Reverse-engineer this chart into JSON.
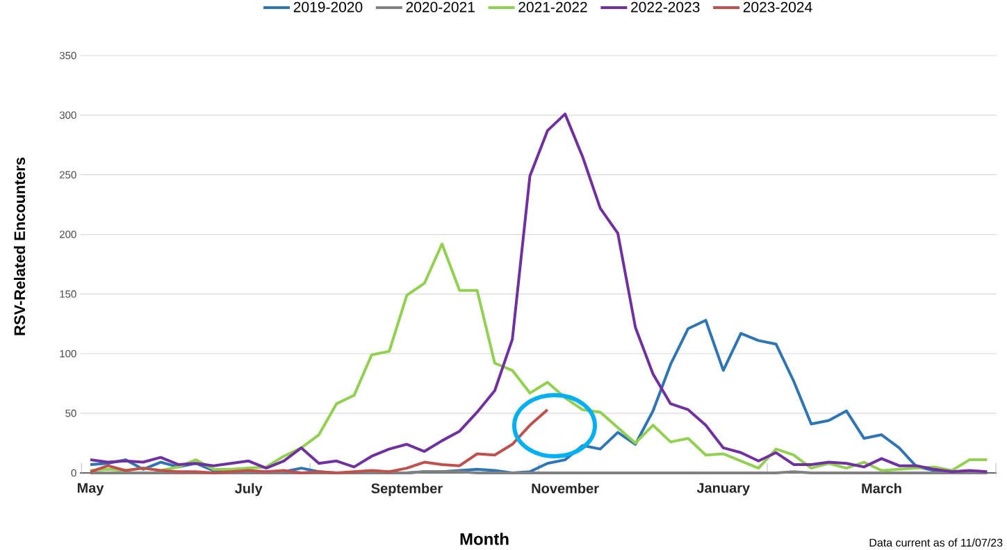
{
  "chart_data": {
    "type": "line",
    "xlabel": "Month",
    "ylabel": "RSV-Related Encounters",
    "categories": [
      "May",
      null,
      null,
      null,
      null,
      null,
      null,
      null,
      null,
      "July",
      null,
      null,
      null,
      null,
      null,
      null,
      null,
      null,
      "September",
      null,
      null,
      null,
      null,
      null,
      null,
      null,
      null,
      "November",
      null,
      null,
      null,
      null,
      null,
      null,
      null,
      null,
      "January",
      null,
      null,
      null,
      null,
      null,
      null,
      null,
      null,
      "March",
      null,
      null,
      null,
      null,
      null,
      null
    ],
    "series": [
      {
        "name": "2019-2020",
        "color": "#2e75b6",
        "values": [
          7,
          8,
          11,
          3,
          9,
          5,
          8,
          2,
          1,
          1,
          1,
          1,
          4,
          1,
          0,
          0,
          0,
          0,
          0,
          1,
          1,
          2,
          3,
          2,
          0,
          1,
          8,
          11,
          23,
          20,
          34,
          24,
          52,
          91,
          121,
          128,
          86,
          117,
          111,
          108,
          77,
          41,
          44,
          52,
          29,
          32,
          21,
          5,
          2,
          1,
          1,
          0
        ]
      },
      {
        "name": "2020-2021",
        "color": "#808080",
        "values": [
          0,
          0,
          0,
          0,
          0,
          0,
          0,
          0,
          0,
          0,
          0,
          0,
          0,
          0,
          0,
          0,
          0,
          0,
          0,
          1,
          1,
          1,
          0,
          0,
          0,
          0,
          0,
          0,
          0,
          0,
          0,
          0,
          0,
          0,
          0,
          0,
          0,
          0,
          0,
          0,
          1,
          0,
          0,
          0,
          0,
          0,
          0,
          0,
          0,
          0,
          0,
          0
        ]
      },
      {
        "name": "2021-2022",
        "color": "#92d050",
        "values": [
          2,
          3,
          2,
          4,
          2,
          5,
          11,
          3,
          3,
          4,
          5,
          14,
          21,
          32,
          58,
          65,
          99,
          102,
          149,
          159,
          192,
          153,
          153,
          92,
          86,
          67,
          76,
          63,
          53,
          51,
          38,
          25,
          40,
          26,
          29,
          15,
          16,
          10,
          4,
          20,
          15,
          4,
          8,
          4,
          9,
          2,
          3,
          4,
          5,
          2,
          11,
          11
        ]
      },
      {
        "name": "2022-2023",
        "color": "#7030a0",
        "values": [
          11,
          9,
          10,
          9,
          13,
          7,
          8,
          6,
          8,
          10,
          4,
          10,
          21,
          8,
          10,
          5,
          14,
          20,
          24,
          18,
          27,
          35,
          51,
          69,
          112,
          249,
          287,
          301,
          265,
          222,
          201,
          122,
          83,
          58,
          53,
          40,
          21,
          17,
          10,
          17,
          7,
          7,
          9,
          8,
          5,
          12,
          6,
          6,
          3,
          1,
          2,
          1
        ]
      },
      {
        "name": "2023-2024",
        "color": "#c0504d",
        "values": [
          1,
          6,
          2,
          4,
          2,
          1,
          1,
          0,
          1,
          2,
          1,
          2,
          0,
          1,
          0,
          1,
          2,
          1,
          4,
          9,
          7,
          6,
          16,
          15,
          24,
          40,
          53,
          null,
          null,
          null,
          null,
          null,
          null,
          null,
          null,
          null,
          null,
          null,
          null,
          null,
          null,
          null,
          null,
          null,
          null,
          null,
          null,
          null,
          null,
          null,
          null,
          null
        ]
      }
    ],
    "ylim": [
      0,
      350
    ],
    "yticks": [
      0,
      50,
      100,
      150,
      200,
      250,
      300,
      350
    ],
    "grid": "y",
    "legend": "top",
    "line_style": "solid",
    "marker": "none",
    "annotations": [
      "Data current as of 11/07/23"
    ]
  }
}
